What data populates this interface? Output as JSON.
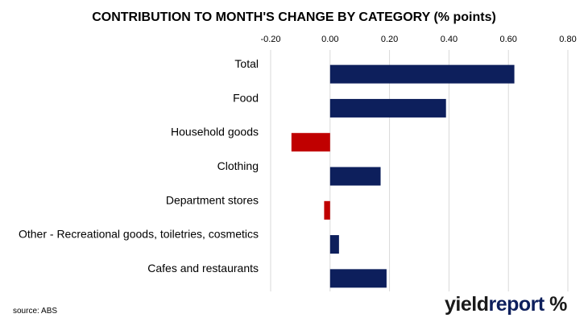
{
  "title": "CONTRIBUTION TO MONTH'S CHANGE BY CATEGORY (% points)",
  "source": "source: ABS",
  "logo": {
    "part1": "yield",
    "part2": "report",
    "symbol": "%"
  },
  "colors": {
    "positive": "#0d1f5c",
    "negative": "#c00000",
    "grid": "#d9d9d9"
  },
  "chart_data": {
    "type": "bar",
    "orientation": "horizontal",
    "title": "CONTRIBUTION TO MONTH'S CHANGE BY CATEGORY (% points)",
    "categories": [
      "Total",
      "Food",
      "Household goods",
      "Clothing",
      "Department stores",
      "Other - Recreational goods, toiletries, cosmetics",
      "Cafes and restaurants"
    ],
    "values": [
      0.62,
      0.39,
      -0.13,
      0.17,
      -0.02,
      0.03,
      0.19
    ],
    "xlim": [
      -0.2,
      0.8
    ],
    "ticks": [
      -0.2,
      0.0,
      0.2,
      0.4,
      0.6,
      0.8
    ],
    "tick_labels": [
      "-0.20",
      "0.00",
      "0.20",
      "0.40",
      "0.60",
      "0.80"
    ],
    "axis_position": "top",
    "grid": true,
    "legend": "none"
  }
}
